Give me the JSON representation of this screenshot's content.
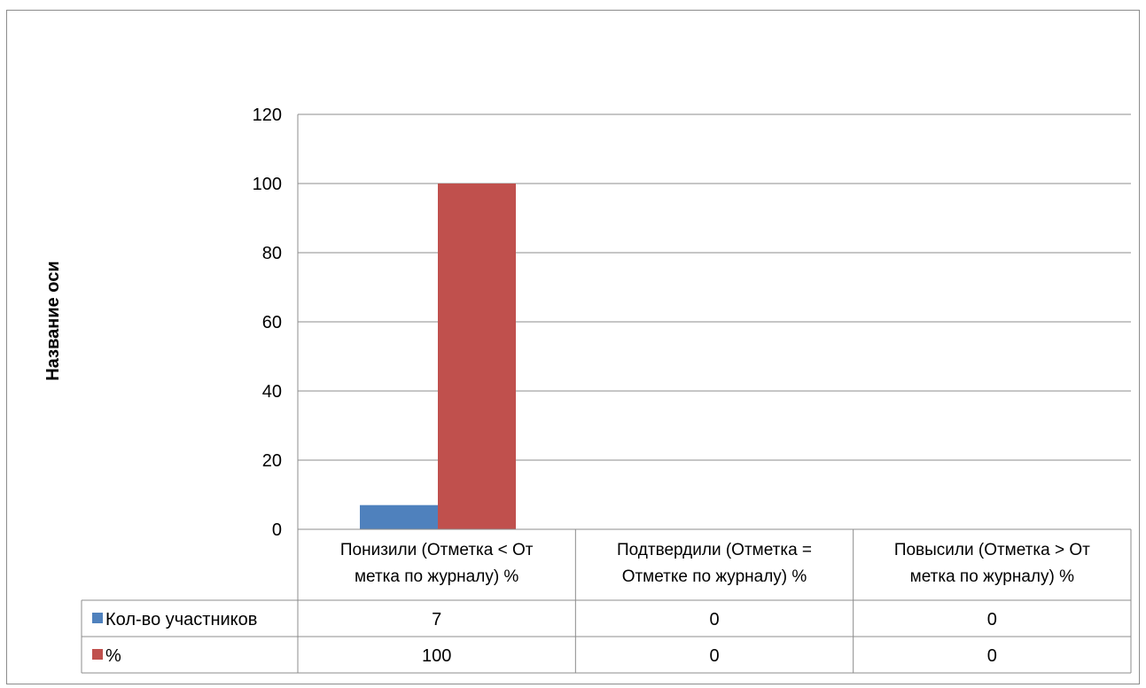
{
  "chart_data": {
    "type": "bar",
    "title": "",
    "ylabel": "Название оси",
    "xlabel": "",
    "ylim": [
      0,
      120
    ],
    "yticks": [
      0,
      20,
      40,
      60,
      80,
      100,
      120
    ],
    "grid": true,
    "categories": [
      "Понизили (Отметка < От метка по журналу) %",
      "Подтвердили (Отметка = Отметке по журналу) %",
      "Повысили (Отметка > От метка по журналу) %"
    ],
    "category_lines": [
      [
        "Понизили (Отметка < От",
        "метка по журналу) %"
      ],
      [
        "Подтвердили (Отметка =",
        "Отметке по журналу) %"
      ],
      [
        "Повысили (Отметка > От",
        "метка по журналу) %"
      ]
    ],
    "series": [
      {
        "name": "Кол-во участников",
        "values": [
          7,
          0,
          0
        ],
        "color": "#4f81bd"
      },
      {
        "name": "%",
        "values": [
          100,
          0,
          0
        ],
        "color": "#c0504d"
      }
    ],
    "legend": "data-table"
  }
}
